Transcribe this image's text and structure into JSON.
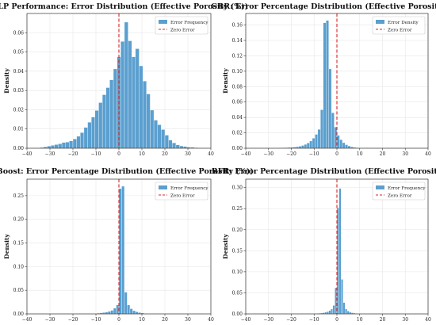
{
  "chart_data": [
    {
      "type": "bar",
      "title": "MLP Performance: Error Distribution (Effective Porosity (%))",
      "xlabel": "",
      "ylabel": "Density",
      "xlim": [
        -40,
        40
      ],
      "ylim": [
        0,
        0.07
      ],
      "xticks": [
        "−40",
        "−30",
        "−20",
        "−10",
        "0",
        "10",
        "20",
        "30",
        "40"
      ],
      "yticks": [
        "0.00",
        "0.01",
        "0.02",
        "0.03",
        "0.04",
        "0.05",
        "0.06"
      ],
      "bin_width": 1.6,
      "bins_start": -34.4,
      "values": [
        0.0004,
        0.0007,
        0.0011,
        0.0015,
        0.0019,
        0.0023,
        0.003,
        0.0032,
        0.0038,
        0.0048,
        0.0062,
        0.0081,
        0.0108,
        0.0135,
        0.0162,
        0.0196,
        0.0237,
        0.0278,
        0.0315,
        0.0355,
        0.0412,
        0.0475,
        0.0555,
        0.0655,
        0.0558,
        0.0475,
        0.0517,
        0.0428,
        0.0349,
        0.0282,
        0.0198,
        0.0146,
        0.0122,
        0.0097,
        0.0068,
        0.0042,
        0.0028,
        0.0018,
        0.0012,
        0.0009,
        0.0006,
        0.0005,
        0.0003
      ],
      "reference_line": {
        "x": 0,
        "label": "Zero Error",
        "color": "#d62728"
      },
      "legend": {
        "position": "top-right",
        "entries": [
          "Error Frequency",
          "Zero Error"
        ]
      },
      "bar_color": "#5a9fcf",
      "grid": true
    },
    {
      "type": "bar",
      "title": "GBR: Error Percentage Distribution (Effective Porosity (%))",
      "xlabel": "",
      "ylabel": "Density",
      "xlim": [
        -40,
        40
      ],
      "ylim": [
        0,
        0.175
      ],
      "xticks": [
        "−40",
        "−30",
        "−20",
        "−10",
        "0",
        "10",
        "20",
        "30",
        "40"
      ],
      "yticks": [
        "0.00",
        "0.02",
        "0.04",
        "0.06",
        "0.08",
        "0.10",
        "0.12",
        "0.14",
        "0.16"
      ],
      "bin_width": 1.2,
      "bins_start": -30.0,
      "values": [
        0.0003,
        0.0003,
        0.0004,
        0.0004,
        0.0005,
        0.0006,
        0.0008,
        0.001,
        0.0012,
        0.0015,
        0.002,
        0.0026,
        0.0036,
        0.005,
        0.0068,
        0.0094,
        0.013,
        0.018,
        0.0245,
        0.05,
        0.163,
        0.166,
        0.103,
        0.046,
        0.0275,
        0.0168,
        0.0112,
        0.0072,
        0.0046,
        0.003,
        0.0018,
        0.0011,
        0.0007,
        0.0005,
        0.0004
      ],
      "reference_line": {
        "x": 0,
        "label": "Zero Error",
        "color": "#d62728"
      },
      "legend": {
        "position": "top-right",
        "entries": [
          "Error Density",
          "Zero Error"
        ]
      },
      "bar_color": "#5a9fcf",
      "grid": true
    },
    {
      "type": "bar",
      "title": "XGBoost: Error Percentage Distribution (Effective Porosity (%))",
      "xlabel": "",
      "ylabel": "Density",
      "xlim": [
        -40,
        40
      ],
      "ylim": [
        0,
        0.285
      ],
      "xticks": [
        "−40",
        "−30",
        "−20",
        "−10",
        "0",
        "10",
        "20",
        "30",
        "40"
      ],
      "yticks": [
        "0.00",
        "0.05",
        "0.10",
        "0.15",
        "0.20",
        "0.25"
      ],
      "bin_width": 1.2,
      "bins_start": -9.6,
      "values": [
        0.0015,
        0.002,
        0.0028,
        0.004,
        0.0055,
        0.0075,
        0.012,
        0.019,
        0.265,
        0.27,
        0.046,
        0.019,
        0.011,
        0.0068,
        0.0045,
        0.003,
        0.002
      ],
      "reference_line": {
        "x": 0,
        "label": "Zero Error",
        "color": "#d62728"
      },
      "legend": {
        "position": "top-right",
        "entries": [
          "Error Frequency",
          "Zero Error"
        ]
      },
      "bar_color": "#5a9fcf",
      "grid": true
    },
    {
      "type": "bar",
      "title": "RFR: Error Percentage Distribution (Effective Porosity (%))",
      "xlabel": "",
      "ylabel": "Density",
      "xlim": [
        -40,
        40
      ],
      "ylim": [
        0,
        0.32
      ],
      "xticks": [
        "−40",
        "−30",
        "−20",
        "−10",
        "0",
        "10",
        "20",
        "30",
        "40"
      ],
      "yticks": [
        "0.00",
        "0.05",
        "0.10",
        "0.15",
        "0.20",
        "0.25",
        "0.30"
      ],
      "bin_width": 0.9,
      "bins_start": -9.0,
      "values": [
        0.001,
        0.0015,
        0.002,
        0.0028,
        0.004,
        0.0055,
        0.008,
        0.0115,
        0.02,
        0.062,
        0.252,
        0.298,
        0.082,
        0.027,
        0.0115,
        0.0068,
        0.0042,
        0.0028,
        0.0018,
        0.001
      ],
      "reference_line": {
        "x": 0,
        "label": "Zero Error",
        "color": "#d62728"
      },
      "legend": {
        "position": "top-right",
        "entries": [
          "Error Frequency",
          "Zero Error"
        ]
      },
      "bar_color": "#5a9fcf",
      "grid": true
    }
  ]
}
